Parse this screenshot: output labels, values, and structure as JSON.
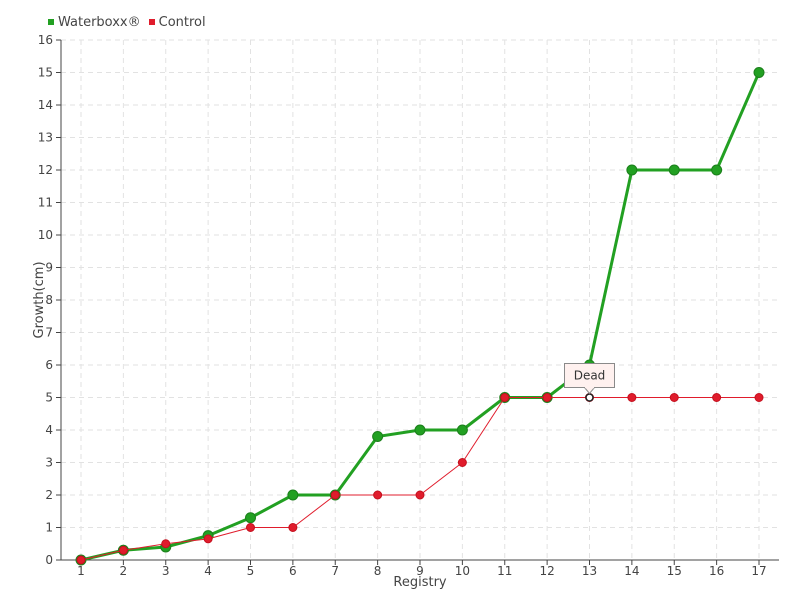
{
  "chart_data": {
    "type": "line",
    "title": "",
    "xlabel": "Registry",
    "ylabel": "Growth(cm)",
    "categories": [
      "1",
      "2",
      "3",
      "4",
      "5",
      "6",
      "7",
      "8",
      "9",
      "10",
      "11",
      "12",
      "13",
      "14",
      "15",
      "16",
      "17"
    ],
    "ylim": [
      0,
      16
    ],
    "yticks": [
      "0",
      "1",
      "2",
      "3",
      "4",
      "5",
      "6",
      "7",
      "8",
      "9",
      "10",
      "11",
      "12",
      "13",
      "14",
      "15",
      "16"
    ],
    "grid": true,
    "legend_position": "top-left",
    "series": [
      {
        "name": "Waterboxx®",
        "color": "#22a022",
        "values": [
          0,
          0.3,
          0.4,
          0.75,
          1.3,
          2,
          2,
          3.8,
          4,
          4,
          5,
          5,
          6,
          12,
          12,
          12,
          15
        ]
      },
      {
        "name": "Control",
        "color": "#e01c2c",
        "values": [
          0,
          0.3,
          0.5,
          0.65,
          1,
          1,
          2,
          2,
          2,
          3,
          5,
          5,
          5,
          5,
          5,
          5,
          5
        ]
      }
    ],
    "annotation": {
      "text": "Dead",
      "series": 1,
      "category": "13"
    }
  }
}
